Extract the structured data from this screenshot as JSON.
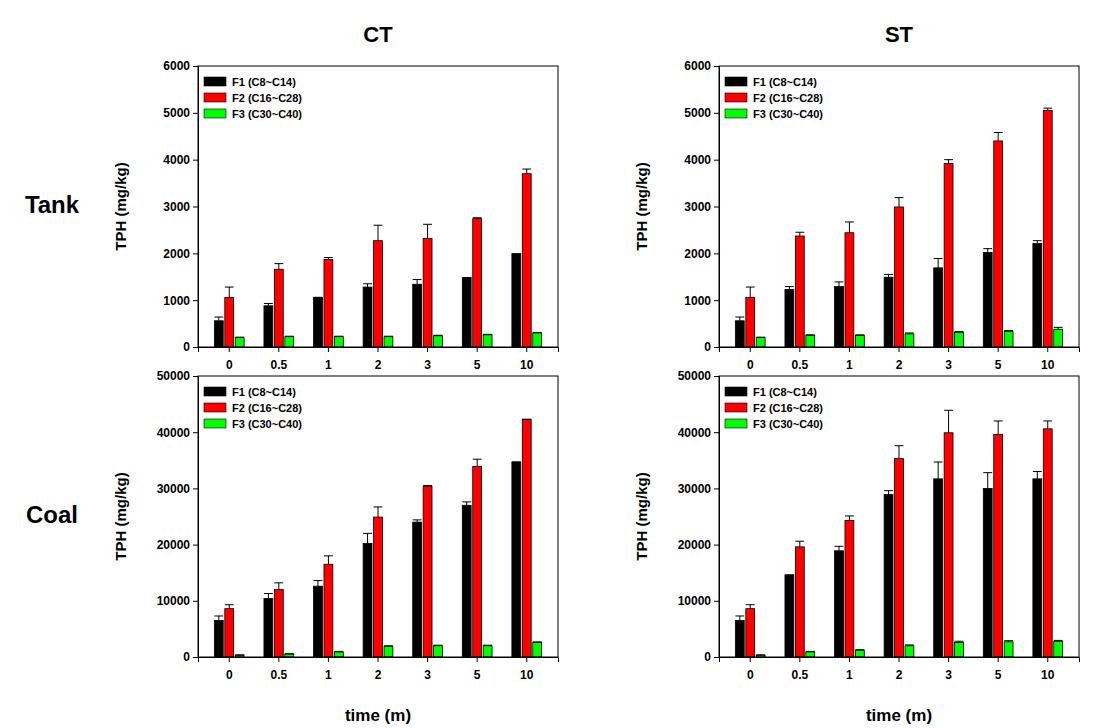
{
  "chart_data": [
    {
      "type": "bar",
      "title": "CT",
      "row_label": "Tank",
      "y_label": "TPH (mg/kg)",
      "categories": [
        "0",
        "0.5",
        "1",
        "2",
        "3",
        "5",
        "10"
      ],
      "ylim": [
        0,
        6000
      ],
      "yticks": [
        0,
        1000,
        2000,
        3000,
        4000,
        5000,
        6000
      ],
      "grid": false,
      "legend": "upper left",
      "series": [
        {
          "name": "F1 (C8~C14)",
          "color": "#000000",
          "values": [
            560,
            880,
            1060,
            1280,
            1340,
            1480,
            1990
          ],
          "errors": [
            80,
            50,
            0,
            70,
            100,
            0,
            0
          ]
        },
        {
          "name": "F2 (C16~C28)",
          "color": "#ff0000",
          "values": [
            1060,
            1660,
            1870,
            2270,
            2320,
            2740,
            3700
          ],
          "errors": [
            220,
            120,
            40,
            330,
            300,
            20,
            100
          ]
        },
        {
          "name": "F3 (C30~C40)",
          "color": "#00ff00",
          "values": [
            200,
            220,
            220,
            220,
            240,
            260,
            300
          ],
          "errors": [
            10,
            10,
            10,
            10,
            10,
            10,
            10
          ]
        }
      ]
    },
    {
      "type": "bar",
      "title": "ST",
      "y_label": "TPH (mg/kg)",
      "categories": [
        "0",
        "0.5",
        "1",
        "2",
        "3",
        "5",
        "10"
      ],
      "ylim": [
        0,
        6000
      ],
      "yticks": [
        0,
        1000,
        2000,
        3000,
        4000,
        5000,
        6000
      ],
      "grid": false,
      "legend": "upper left",
      "series": [
        {
          "name": "F1 (C8~C14)",
          "color": "#000000",
          "values": [
            560,
            1230,
            1290,
            1490,
            1690,
            2020,
            2210
          ],
          "errors": [
            80,
            60,
            100,
            60,
            200,
            80,
            60
          ]
        },
        {
          "name": "F2 (C16~C28)",
          "color": "#ff0000",
          "values": [
            1060,
            2370,
            2440,
            2990,
            3920,
            4400,
            5050
          ],
          "errors": [
            220,
            80,
            230,
            200,
            80,
            180,
            50
          ]
        },
        {
          "name": "F3 (C30~C40)",
          "color": "#00ff00",
          "values": [
            200,
            250,
            250,
            280,
            310,
            330,
            380
          ],
          "errors": [
            10,
            10,
            10,
            20,
            20,
            20,
            40
          ]
        }
      ]
    },
    {
      "type": "bar",
      "row_label": "Coal",
      "y_label": "TPH (mg/kg)",
      "x_label": "time (m)",
      "categories": [
        "0",
        "0.5",
        "1",
        "2",
        "3",
        "5",
        "10"
      ],
      "ylim": [
        0,
        50000
      ],
      "yticks": [
        0,
        10000,
        20000,
        30000,
        40000,
        50000
      ],
      "grid": false,
      "legend": "upper left",
      "series": [
        {
          "name": "F1 (C8~C14)",
          "color": "#000000",
          "values": [
            6500,
            10400,
            12600,
            20200,
            24000,
            27000,
            34700
          ],
          "errors": [
            800,
            900,
            1000,
            1800,
            400,
            600,
            0
          ]
        },
        {
          "name": "F2 (C16~C28)",
          "color": "#ff0000",
          "values": [
            8600,
            12000,
            16500,
            24900,
            30400,
            33900,
            42300
          ],
          "errors": [
            700,
            1200,
            1500,
            1800,
            100,
            1300,
            0
          ]
        },
        {
          "name": "F3 (C30~C40)",
          "color": "#00ff00",
          "values": [
            300,
            500,
            900,
            1900,
            2000,
            2000,
            2600
          ],
          "errors": [
            100,
            100,
            100,
            100,
            100,
            100,
            100
          ]
        }
      ]
    },
    {
      "type": "bar",
      "y_label": "TPH (mg/kg)",
      "x_label": "time (m)",
      "categories": [
        "0",
        "0.5",
        "1",
        "2",
        "3",
        "5",
        "10"
      ],
      "ylim": [
        0,
        50000
      ],
      "yticks": [
        0,
        10000,
        20000,
        30000,
        40000,
        50000
      ],
      "grid": false,
      "legend": "upper left",
      "series": [
        {
          "name": "F1 (C8~C14)",
          "color": "#000000",
          "values": [
            6500,
            14600,
            18900,
            28900,
            31700,
            30000,
            31700
          ],
          "errors": [
            800,
            0,
            800,
            700,
            3000,
            2800,
            1300
          ]
        },
        {
          "name": "F2 (C16~C28)",
          "color": "#ff0000",
          "values": [
            8600,
            19600,
            24300,
            35300,
            39900,
            39600,
            40600
          ],
          "errors": [
            700,
            1000,
            800,
            2300,
            4000,
            2400,
            1400
          ]
        },
        {
          "name": "F3 (C30~C40)",
          "color": "#00ff00",
          "values": [
            300,
            900,
            1200,
            2000,
            2600,
            2700,
            2800
          ],
          "errors": [
            100,
            100,
            100,
            150,
            200,
            200,
            150
          ]
        }
      ]
    }
  ]
}
